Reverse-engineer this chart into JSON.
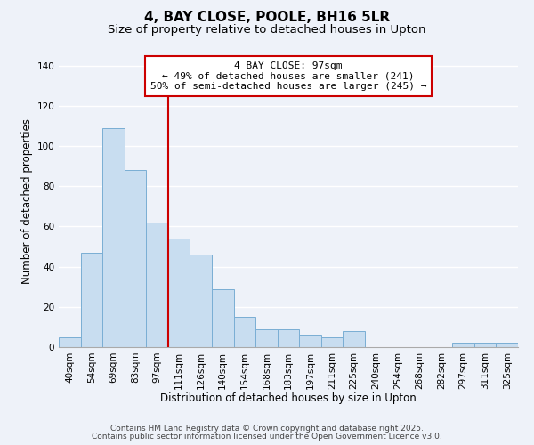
{
  "title": "4, BAY CLOSE, POOLE, BH16 5LR",
  "subtitle": "Size of property relative to detached houses in Upton",
  "xlabel": "Distribution of detached houses by size in Upton",
  "ylabel": "Number of detached properties",
  "categories": [
    "40sqm",
    "54sqm",
    "69sqm",
    "83sqm",
    "97sqm",
    "111sqm",
    "126sqm",
    "140sqm",
    "154sqm",
    "168sqm",
    "183sqm",
    "197sqm",
    "211sqm",
    "225sqm",
    "240sqm",
    "254sqm",
    "268sqm",
    "282sqm",
    "297sqm",
    "311sqm",
    "325sqm"
  ],
  "values": [
    5,
    47,
    109,
    88,
    62,
    54,
    46,
    29,
    15,
    9,
    9,
    6,
    5,
    8,
    0,
    0,
    0,
    0,
    2,
    2,
    2
  ],
  "bar_color": "#c8ddf0",
  "bar_edge_color": "#7aaed4",
  "vline_color": "#cc0000",
  "annotation_line1": "4 BAY CLOSE: 97sqm",
  "annotation_line2": "← 49% of detached houses are smaller (241)",
  "annotation_line3": "50% of semi-detached houses are larger (245) →",
  "ylim": [
    0,
    145
  ],
  "yticks": [
    0,
    20,
    40,
    60,
    80,
    100,
    120,
    140
  ],
  "footer_line1": "Contains HM Land Registry data © Crown copyright and database right 2025.",
  "footer_line2": "Contains public sector information licensed under the Open Government Licence v3.0.",
  "background_color": "#eef2f9",
  "grid_color": "#ffffff",
  "title_fontsize": 11,
  "subtitle_fontsize": 9.5,
  "axis_label_fontsize": 8.5,
  "tick_fontsize": 7.5,
  "annotation_fontsize": 8,
  "footer_fontsize": 6.5
}
